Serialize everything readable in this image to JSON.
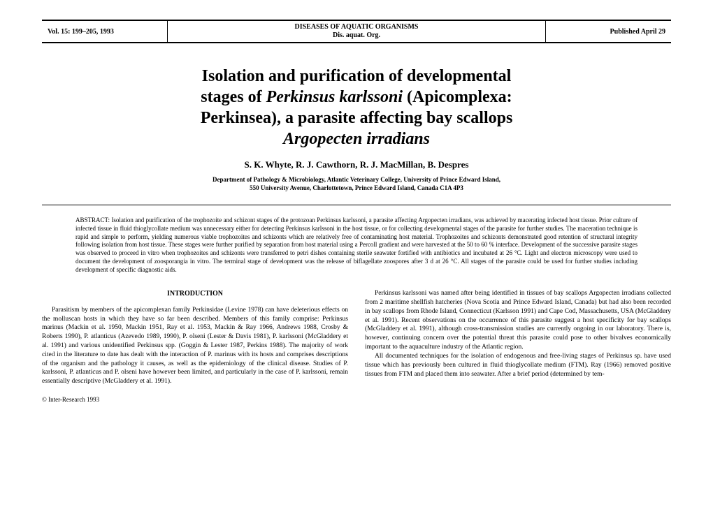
{
  "header": {
    "volume": "Vol. 15: 199–205, 1993",
    "journal_title": "DISEASES OF AQUATIC ORGANISMS",
    "journal_abbrev": "Dis. aquat. Org.",
    "published": "Published April 29"
  },
  "title": {
    "line1": "Isolation and purification of developmental",
    "line2_pre": "stages of ",
    "line2_italic": "Perkinsus karlssoni",
    "line2_post": " (Apicomplexa:",
    "line3": "Perkinsea), a parasite affecting bay scallops",
    "line4_italic": "Argopecten irradians"
  },
  "authors": "S. K. Whyte, R. J. Cawthorn, R. J. MacMillan, B. Despres",
  "affiliation": {
    "line1": "Department of Pathology & Microbiology, Atlantic Veterinary College, University of Prince Edward Island,",
    "line2": "550 University Avenue, Charlottetown, Prince Edward Island, Canada C1A 4P3"
  },
  "abstract": {
    "label": "ABSTRACT: ",
    "text": "Isolation and purification of the trophozoite and schizont stages of the protozoan Perkinsus karlssoni, a parasite affecting Argopecten irradians, was achieved by macerating infected host tissue. Prior culture of infected tissue in fluid thioglycollate medium was unnecessary either for detecting Perkinsus karlssoni in the host tissue, or for collecting developmental stages of the parasite for further studies. The maceration technique is rapid and simple to perform, yielding numerous viable trophozoites and schizonts which are relatively free of contaminating host material. Trophozoites and schizonts demonstrated good retention of structural integrity following isolation from host tissue. These stages were further purified by separation from host material using a Percoll gradient and were harvested at the 50 to 60 % interface. Development of the successive parasite stages was observed to proceed in vitro when trophozoites and schizonts were transferred to petri dishes containing sterile seawater fortified with antibiotics and incubated at 26 °C. Light and electron microscopy were used to document the development of zoosporangia in vitro. The terminal stage of development was the release of biflagellate zoospores after 3 d at 26 °C. All stages of the parasite could be used for further studies including development of specific diagnostic aids."
  },
  "intro_header": "INTRODUCTION",
  "column_left": {
    "p1": "Parasitism by members of the apicomplexan family Perkinsidae (Levine 1978) can have deleterious effects on the molluscan hosts in which they have so far been described. Members of this family comprise: Perkinsus marinus (Mackin et al. 1950, Mackin 1951, Ray et al. 1953, Mackin & Ray 1966, Andrews 1988, Crosby & Roberts 1990), P. atlanticus (Azevedo 1989, 1990), P. olseni (Lester & Davis 1981), P. karlssoni (McGladdery et al. 1991) and various unidentified Perkinsus spp. (Goggin & Lester 1987, Perkins 1988). The majority of work cited in the literature to date has dealt with the interaction of P. marinus with its hosts and comprises descriptions of the organism and the pathology it causes, as well as the epidemiology of the clinical disease. Studies of P. karlssoni, P. atlanticus and P. olseni have however been limited, and particularly in the case of P. karlssoni, remain essentially descriptive (McGladdery et al. 1991)."
  },
  "column_right": {
    "p1": "Perkinsus karlssoni was named after being identified in tissues of bay scallops Argopecten irradians collected from 2 maritime shellfish hatcheries (Nova Scotia and Prince Edward Island, Canada) but had also been recorded in bay scallops from Rhode Island, Connecticut (Karlsson 1991) and Cape Cod, Massachusetts, USA (McGladdery et al. 1991). Recent observations on the occurrence of this parasite suggest a host specificity for bay scallops (McGladdery et al. 1991), although cross-transmission studies are currently ongoing in our laboratory. There is, however, continuing concern over the potential threat this parasite could pose to other bivalves economically important to the aquaculture industry of the Atlantic region.",
    "p2": "All documented techniques for the isolation of endogenous and free-living stages of Perkinsus sp. have used tissue which has previously been cultured in fluid thioglycollate medium (FTM). Ray (1966) removed positive tissues from FTM and placed them into seawater. After a brief period (determined by tem-"
  },
  "copyright": "© Inter-Research 1993"
}
